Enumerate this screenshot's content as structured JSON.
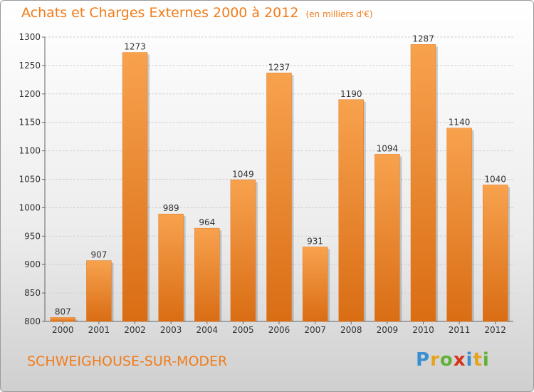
{
  "header": {
    "title": "Achats et Charges Externes 2000 à 2012",
    "subtitle": "(en milliers d'€)"
  },
  "footer": {
    "location": "SCHWEIGHOUSE-SUR-MODER",
    "logo_letters": [
      "P",
      "r",
      "o",
      "x",
      "i",
      "t",
      "i"
    ],
    "logo_colors": [
      "#3a8fd1",
      "#e8a21b",
      "#5fb236",
      "#d5351c",
      "#3a8fd1",
      "#e8a21b",
      "#5fb236"
    ]
  },
  "colors": {
    "title": "#f07c1a",
    "bar_light": "#f8a24e",
    "bar_dark": "#d96d14",
    "grid": "#cfcfcf"
  },
  "chart_data": {
    "type": "bar",
    "categories": [
      "2000",
      "2001",
      "2002",
      "2003",
      "2004",
      "2005",
      "2006",
      "2007",
      "2008",
      "2009",
      "2010",
      "2011",
      "2012"
    ],
    "values": [
      807,
      907,
      1273,
      989,
      964,
      1049,
      1237,
      931,
      1190,
      1094,
      1287,
      1140,
      1040
    ],
    "data_labels": [
      "807",
      "907",
      "1273",
      "989",
      "964",
      "1049",
      "1237",
      "931",
      "1190",
      "1094",
      "1287",
      "1140",
      "1040"
    ],
    "ylim": [
      800,
      1300
    ],
    "yticks": [
      800,
      850,
      900,
      950,
      1000,
      1050,
      1100,
      1150,
      1200,
      1250,
      1300
    ],
    "grid": true
  }
}
